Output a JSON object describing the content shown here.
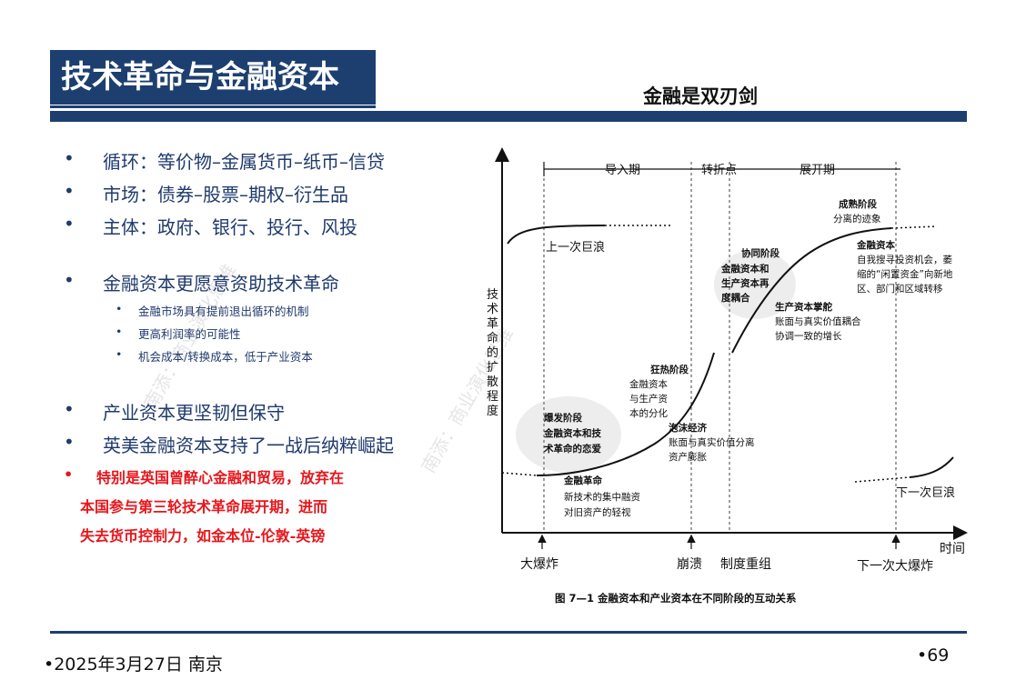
{
  "header": {
    "title": "技术革命与金融资本",
    "subtitle": "金融是双刃剑"
  },
  "bullets": {
    "main": [
      {
        "marker": "•",
        "text": "循环：等价物–金属货币–纸币–信贷"
      },
      {
        "marker": "•",
        "text": "市场：债券–股票–期权–衍生品"
      },
      {
        "marker": "•",
        "text": "主体：政府、银行、投行、风投"
      },
      {
        "marker": "•",
        "text": "金融资本更愿意资助技术革命"
      },
      {
        "marker": "•",
        "text": "产业资本更坚韧但保守"
      },
      {
        "marker": "•",
        "text": "英美金融资本支持了一战后纳粹崛起"
      }
    ],
    "sub": [
      {
        "marker": "•",
        "text": "金融市场具有提前退出循环的机制"
      },
      {
        "marker": "•",
        "text": "更高利润率的可能性"
      },
      {
        "marker": "•",
        "text": "机会成本/转换成本，低于产业资本"
      }
    ],
    "red": {
      "marker": "•",
      "lines": [
        "特别是英国曾醉心金融和贸易，放弃在",
        "本国参与第三轮技术革命展开期，进而",
        "失去货币控制力，如金本位-伦敦-英镑"
      ]
    }
  },
  "figure": {
    "phase_labels": [
      "导入期",
      "转折点",
      "展开期"
    ],
    "y_axis_label": [
      "技",
      "术",
      "革",
      "命",
      "的",
      "扩",
      "散",
      "程",
      "度"
    ],
    "x_axis_label": "时间",
    "bottom_events": [
      "大爆炸",
      "崩溃",
      "制度重组",
      "下一次大爆炸"
    ],
    "prev_wave": "上一次巨浪",
    "next_wave": "下一次巨浪",
    "stages": {
      "financial_revolution": [
        "金融革命",
        "新技术的集中融资",
        "对旧资产的轻视"
      ],
      "eruption": [
        "爆发阶段",
        "金融资本和技",
        "术革命的恋爱"
      ],
      "frenzy": [
        "狂热阶段",
        "金融资本",
        "与生产资",
        "本的分化"
      ],
      "bubble": [
        "泡沫经济",
        "账面与真实价值分离",
        "资产膨胀"
      ],
      "synergy": [
        "协同阶段",
        "金融资本和",
        "生产资本再",
        "度耦合"
      ],
      "production": [
        "生产资本掌舵",
        "账面与真实价值耦合",
        "协调一致的增长"
      ],
      "maturity": [
        "成熟阶段",
        "分离的迹象"
      ],
      "finance_search": [
        "金融资本",
        "自我搜寻投资机会，萎",
        "缩的“闲置资金”向新地",
        "区、部门和区域转移"
      ]
    },
    "caption": "图 7—1    金融资本和产业资本在不同阶段的互动关系"
  },
  "watermarks": [
    "南添：商业演化思维",
    "南添：商业演化思维"
  ],
  "footer": {
    "date": "•2025年3月27日 南京",
    "page": "•69"
  },
  "colors": {
    "navy": "#1d3f70",
    "text_blue": "#1f3a6b",
    "red": "#e8151b"
  }
}
